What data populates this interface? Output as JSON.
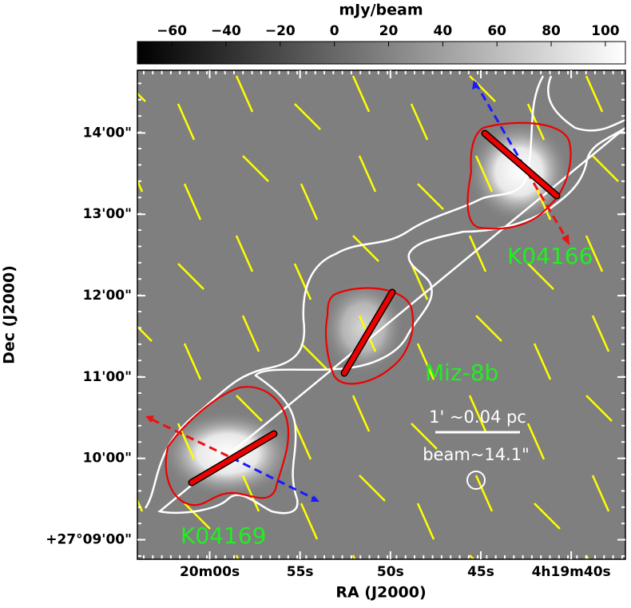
{
  "chart_data": {
    "type": "image",
    "colorbar": {
      "label": "mJy/beam",
      "clim": [
        -72.7,
        107.4
      ],
      "ticks": [
        {
          "value": -60,
          "label": "−60"
        },
        {
          "value": -40,
          "label": "−40"
        },
        {
          "value": -20,
          "label": "−20"
        },
        0,
        20,
        40,
        60,
        80,
        100
      ]
    },
    "x_label": "RA (J2000)",
    "y_label": "Dec (J2000)",
    "xlim": [
      15604.0,
      15577.0
    ],
    "xticks": [
      {
        "value": 15600,
        "label": "20m00s"
      },
      {
        "value": 15595,
        "label": "55s"
      },
      {
        "value": 15590,
        "label": "50s"
      },
      {
        "value": 15585,
        "label": "45s"
      },
      {
        "value": 15580,
        "label": "4h19m40s"
      }
    ],
    "ylim": [
      8.76,
      14.77
    ],
    "yticks": [
      {
        "value": 9,
        "label": "+27°09'00\""
      },
      {
        "value": 10,
        "label": "10'00\""
      },
      {
        "value": 11,
        "label": "11'00\""
      },
      {
        "value": 12,
        "label": "12'00\""
      },
      {
        "value": 13,
        "label": "13'00\""
      },
      {
        "value": 14,
        "label": "14'00\""
      }
    ],
    "annotations": [
      "K04166",
      "Miz-8b",
      "K04169",
      "1' ~0.04 pc",
      "beam~14.1\""
    ]
  }
}
